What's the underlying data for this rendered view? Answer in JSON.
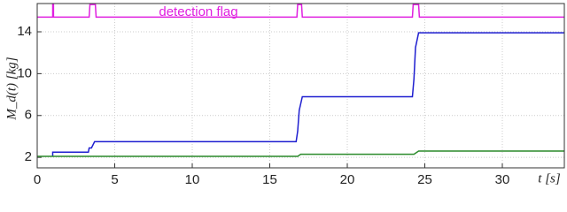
{
  "chart_data": {
    "type": "line",
    "y_label": "M_d(t) [kg]",
    "x_label": "t [s]",
    "annotation": "detection flag",
    "xlim": [
      0,
      34
    ],
    "ylim": [
      1,
      16.7
    ],
    "xticks": [
      0,
      5,
      10,
      15,
      20,
      25,
      30
    ],
    "yticks": [
      2,
      6,
      10,
      14
    ],
    "grid": true,
    "series": [
      {
        "name": "detection flag",
        "color": "#e020e0",
        "x": [
          0,
          1.0,
          1.0,
          1.05,
          1.05,
          3.35,
          3.4,
          3.75,
          3.8,
          16.75,
          16.8,
          17.05,
          17.1,
          24.2,
          24.25,
          24.6,
          24.65,
          34
        ],
        "values": [
          15.4,
          15.4,
          16.6,
          16.6,
          15.4,
          15.4,
          16.6,
          16.6,
          15.4,
          15.4,
          16.6,
          16.6,
          15.4,
          15.4,
          16.6,
          16.6,
          15.4,
          15.4
        ]
      },
      {
        "name": "blue",
        "color": "#1f1fd0",
        "x": [
          1.0,
          1.0,
          3.3,
          3.35,
          3.5,
          3.7,
          16.7,
          16.8,
          16.9,
          17.1,
          24.2,
          24.3,
          24.4,
          24.6,
          34
        ],
        "values": [
          2.1,
          2.5,
          2.5,
          2.9,
          2.9,
          3.5,
          3.5,
          4.5,
          6.5,
          7.8,
          7.8,
          9.5,
          12.5,
          13.9,
          13.9
        ]
      },
      {
        "name": "green",
        "color": "#2a8a2a",
        "x": [
          0,
          16.8,
          17.0,
          24.3,
          24.6,
          34
        ],
        "values": [
          2.1,
          2.1,
          2.3,
          2.3,
          2.6,
          2.6
        ]
      }
    ]
  }
}
